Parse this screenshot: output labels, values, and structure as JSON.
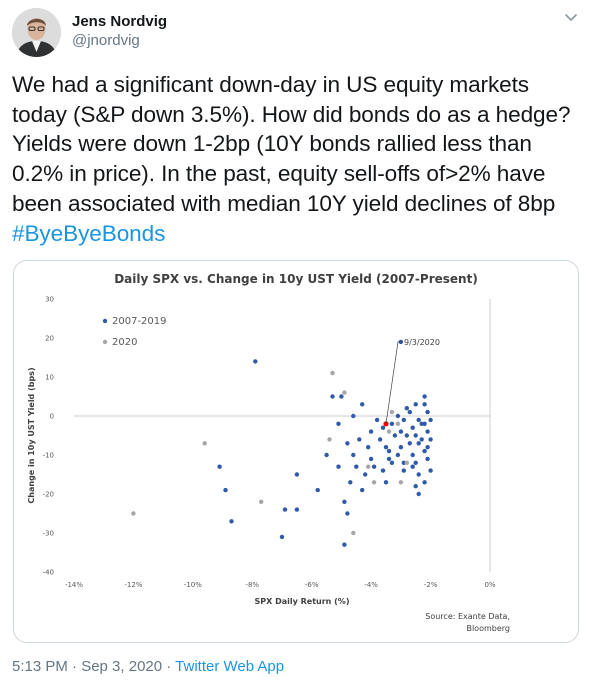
{
  "tweet": {
    "author_name": "Jens Nordvig",
    "author_handle": "@jnordvig",
    "text_lines": [
      "We had a significant down-day in US equity markets",
      "today (S&P down 3.5%). How did bonds do as a hedge?",
      "Yields were down 1-2bp (10Y bonds rallied less than",
      "0.2% in price). In the past, equity sell-offs of>2% have",
      "been associated with median 10Y yield declines of 8bp"
    ],
    "hashtag": "#ByeByeBonds",
    "timestamp": "5:13 PM · Sep 3, 2020",
    "separator": " · ",
    "app": "Twitter Web App"
  },
  "icons": {
    "menu": "chevron-down-icon",
    "avatar": "profile-photo"
  },
  "colors": {
    "link": "#1b95e0",
    "secondary_text": "#657786",
    "series_2007": "#2e5aa8",
    "series_2020": "#a6a6a6",
    "highlight": "#ff0000"
  },
  "chart_data": {
    "type": "scatter",
    "title": "Daily SPX vs. Change in 10y UST Yield (2007-Present)",
    "xlabel": "SPX Daily Return (%)",
    "ylabel": "Change in 10y UST Yield (bps)",
    "xlim": [
      -14,
      0
    ],
    "ylim": [
      -40,
      30
    ],
    "x_ticks": [
      "-14%",
      "-12%",
      "-10%",
      "-8%",
      "-6%",
      "-4%",
      "-2%",
      "0%"
    ],
    "y_ticks": [
      "30",
      "20",
      "10",
      "0",
      "-10",
      "-20",
      "-30",
      "-40"
    ],
    "legend": [
      "2007-2019",
      "2020"
    ],
    "legend_position": "top-left",
    "annotation": {
      "label": "9/3/2020",
      "x": -3.5,
      "y": -2
    },
    "source_lines": [
      "Source: Exante Data,",
      "Bloomberg"
    ],
    "series": [
      {
        "name": "2007-2019",
        "color": "#2e5aa8",
        "points": [
          [
            -7.9,
            14
          ],
          [
            -3.0,
            19
          ],
          [
            -2.8,
            2
          ],
          [
            -2.5,
            3
          ],
          [
            -2.2,
            5
          ],
          [
            -5.3,
            5
          ],
          [
            -5.0,
            5
          ],
          [
            -4.3,
            3
          ],
          [
            -3.1,
            0
          ],
          [
            -2.7,
            1
          ],
          [
            -2.1,
            1
          ],
          [
            -4.6,
            0
          ],
          [
            -3.8,
            -1
          ],
          [
            -3.3,
            -2
          ],
          [
            -2.9,
            -1
          ],
          [
            -2.4,
            -1
          ],
          [
            -2.0,
            -1
          ],
          [
            -5.1,
            -2
          ],
          [
            -4.0,
            -4
          ],
          [
            -3.6,
            -3
          ],
          [
            -3.0,
            -4
          ],
          [
            -2.6,
            -3
          ],
          [
            -2.2,
            -2
          ],
          [
            -4.4,
            -6
          ],
          [
            -3.7,
            -6
          ],
          [
            -3.2,
            -5
          ],
          [
            -2.8,
            -5
          ],
          [
            -2.5,
            -5
          ],
          [
            -2.1,
            -4
          ],
          [
            -5.5,
            -10
          ],
          [
            -4.8,
            -7
          ],
          [
            -4.1,
            -8
          ],
          [
            -3.5,
            -8
          ],
          [
            -3.0,
            -8
          ],
          [
            -2.7,
            -7
          ],
          [
            -2.3,
            -6
          ],
          [
            -2.0,
            -6
          ],
          [
            -4.6,
            -10
          ],
          [
            -4.0,
            -11
          ],
          [
            -3.4,
            -11
          ],
          [
            -3.1,
            -10
          ],
          [
            -2.6,
            -10
          ],
          [
            -2.2,
            -9
          ],
          [
            -5.1,
            -13
          ],
          [
            -4.5,
            -13
          ],
          [
            -3.9,
            -13
          ],
          [
            -3.3,
            -12
          ],
          [
            -2.9,
            -12
          ],
          [
            -2.5,
            -12
          ],
          [
            -2.1,
            -11
          ],
          [
            -4.2,
            -15
          ],
          [
            -3.6,
            -14
          ],
          [
            -2.9,
            -14
          ],
          [
            -2.4,
            -15
          ],
          [
            -2.0,
            -14
          ],
          [
            -6.5,
            -15
          ],
          [
            -4.7,
            -17
          ],
          [
            -3.5,
            -17
          ],
          [
            -2.5,
            -18
          ],
          [
            -2.2,
            -17
          ],
          [
            -4.3,
            -19
          ],
          [
            -2.4,
            -20
          ],
          [
            -5.8,
            -19
          ],
          [
            -4.9,
            -22
          ],
          [
            -6.5,
            -24
          ],
          [
            -4.8,
            -25
          ],
          [
            -9.1,
            -13
          ],
          [
            -8.9,
            -19
          ],
          [
            -8.7,
            -27
          ],
          [
            -6.9,
            -24
          ],
          [
            -7.0,
            -31
          ],
          [
            -4.9,
            -33
          ],
          [
            -2.3,
            -2
          ],
          [
            -2.4,
            -7
          ],
          [
            -2.6,
            -13
          ],
          [
            -3.4,
            -9
          ],
          [
            -2.1,
            -8
          ],
          [
            -2.2,
            3
          ]
        ]
      },
      {
        "name": "2020",
        "color": "#a6a6a6",
        "points": [
          [
            -12.0,
            -25
          ],
          [
            -9.6,
            -7
          ],
          [
            -7.7,
            -22
          ],
          [
            -5.3,
            11
          ],
          [
            -4.9,
            6
          ],
          [
            -5.4,
            -6
          ],
          [
            -3.4,
            -4
          ],
          [
            -3.1,
            -2
          ],
          [
            -3.3,
            1
          ],
          [
            -4.1,
            -13
          ],
          [
            -4.6,
            -30
          ],
          [
            -2.8,
            -12
          ],
          [
            -3.0,
            -17
          ],
          [
            -3.9,
            -17
          ]
        ]
      },
      {
        "name": "9/3/2020",
        "color": "#ff0000",
        "points": [
          [
            -3.5,
            -2
          ]
        ]
      }
    ]
  }
}
